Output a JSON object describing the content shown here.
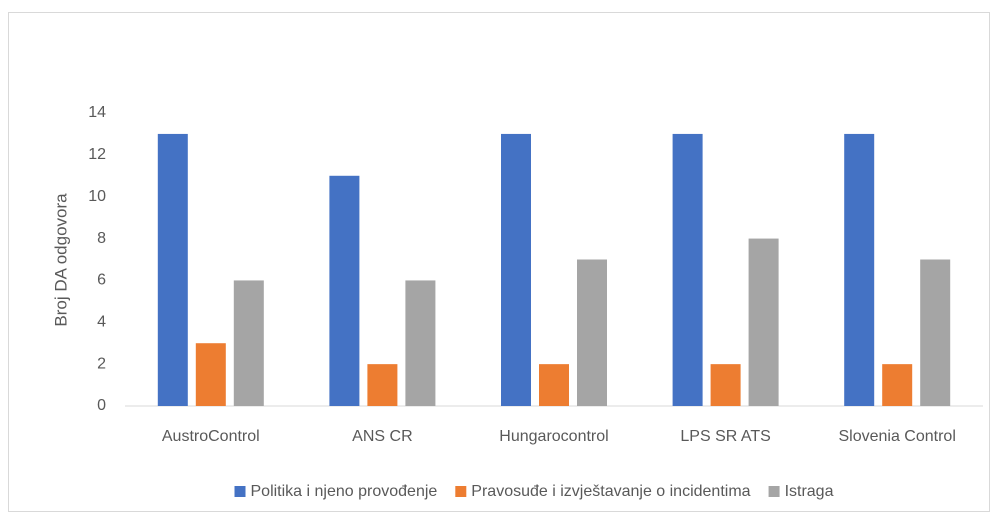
{
  "chart_data": {
    "type": "bar",
    "y_label": "Broj DA odgovora",
    "categories": [
      "AustroControl",
      "ANS CR",
      "Hungarocontrol",
      "LPS SR ATS",
      "Slovenia Control"
    ],
    "series": [
      {
        "name": "Politika i njeno provođenje",
        "color": "#4472c4",
        "values": [
          13,
          11,
          13,
          13,
          13
        ]
      },
      {
        "name": "Pravosuđe i izvještavanje o incidentima",
        "color": "#ed7d31",
        "values": [
          3,
          2,
          2,
          2,
          2
        ]
      },
      {
        "name": "Istraga",
        "color": "#a5a5a5",
        "values": [
          6,
          6,
          7,
          8,
          7
        ]
      }
    ],
    "ylim": [
      0,
      14
    ],
    "yticks": [
      0,
      2,
      4,
      6,
      8,
      10,
      12,
      14
    ],
    "grid": false,
    "legend": "bottom"
  }
}
